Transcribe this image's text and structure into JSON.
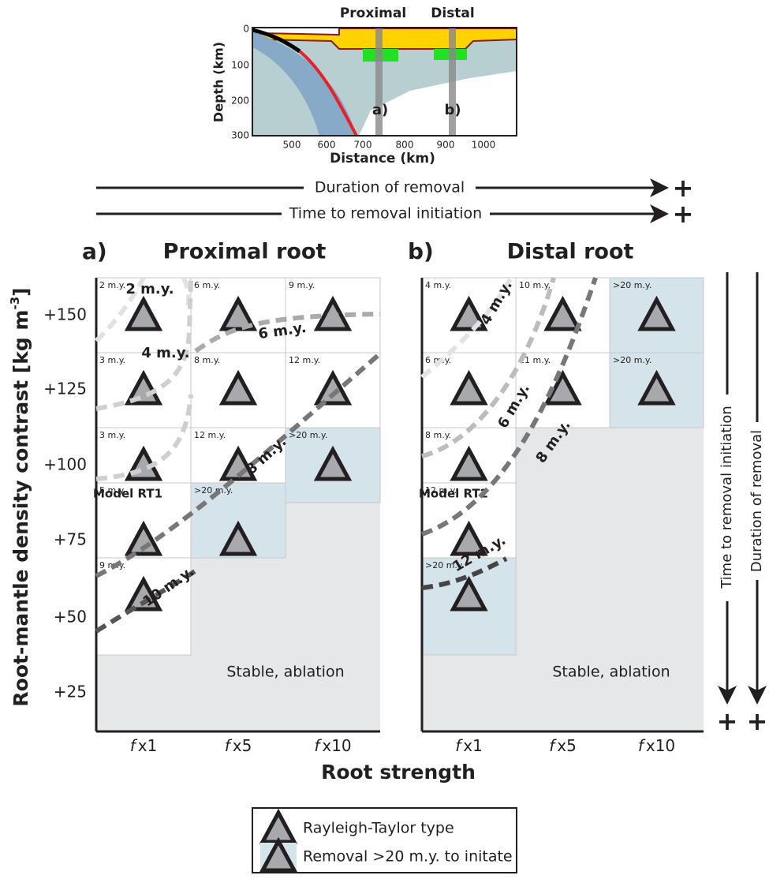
{
  "inset": {
    "labels": [
      "Proximal",
      "Distal"
    ],
    "markers": [
      "a)",
      "b)"
    ],
    "x_axis_title": "Distance (km)",
    "y_axis_title": "Depth (km)",
    "x_ticks": [
      "500",
      "600",
      "700",
      "800",
      "900",
      "1000"
    ],
    "y_ticks": [
      "0",
      "100",
      "200",
      "300"
    ]
  },
  "arrows": [
    "Duration of removal",
    "Time to removal initiation"
  ],
  "plus": "+",
  "panels": [
    {
      "letter": "a)",
      "title": "Proximal root",
      "note": "Model RT1",
      "region_label": "Stable, ablation",
      "rows": [
        [
          {
            "label": "2 m.y."
          },
          {
            "label": "6 m.y."
          },
          {
            "label": "9 m.y."
          }
        ],
        [
          {
            "label": "3 m.y."
          },
          {
            "label": "8 m.y."
          },
          {
            "label": "12 m.y."
          }
        ],
        [
          {
            "label": "3 m.y."
          },
          {
            "label": "12 m.y."
          },
          {
            "label": ">20 m.y.",
            "color": "#d5e3ea"
          }
        ],
        [
          {
            "label": "5 m.y."
          },
          {
            "label": ">20 m.y.",
            "color": "#d5e3ea"
          }
        ],
        [
          {
            "label": "9 m.y."
          }
        ]
      ],
      "contours": [
        "2 m.y.",
        "4 m.y.",
        "6 m.y.",
        "8 m.y.",
        "10 m.y."
      ]
    },
    {
      "letter": "b)",
      "title": "Distal root",
      "note": "Model RT2",
      "region_label": "Stable, ablation",
      "rows": [
        [
          {
            "label": "4 m.y."
          },
          {
            "label": "10 m.y."
          },
          {
            "label": ">20 m.y.",
            "color": "#d5e3ea"
          }
        ],
        [
          {
            "label": "6 m.y."
          },
          {
            "label": "11 m.y."
          },
          {
            "label": ">20 m.y.",
            "color": "#d5e3ea"
          }
        ],
        [
          {
            "label": "8 m.y."
          }
        ],
        [
          {
            "label": "12 m.y."
          }
        ],
        [
          {
            "label": ">20 m.y.",
            "color": "#d5e3ea"
          }
        ]
      ],
      "contours": [
        "4 m.y.",
        "6 m.y.",
        "8 m.y.",
        "12 m.y."
      ]
    }
  ],
  "y_axis": {
    "title": "Root-mantle density contrast [kg m",
    "superscript": "-3",
    "title_end": "]",
    "ticks": [
      "+150",
      "+125",
      "+100",
      "+75",
      "+50",
      "+25"
    ]
  },
  "x_axis": {
    "title": "Root strength",
    "ticks": [
      {
        "symbol": "f",
        "label": "x1"
      },
      {
        "symbol": "f",
        "label": "x5"
      },
      {
        "symbol": "f",
        "label": "x10"
      }
    ]
  },
  "side_arrows": [
    "Time to removal initiation",
    "Duration of removal"
  ],
  "legend": [
    {
      "label": "Rayleigh-Taylor type",
      "color": "#ffffff"
    },
    {
      "label": "Removal >20 m.y. to initate",
      "color": "#d5e3ea"
    }
  ]
}
